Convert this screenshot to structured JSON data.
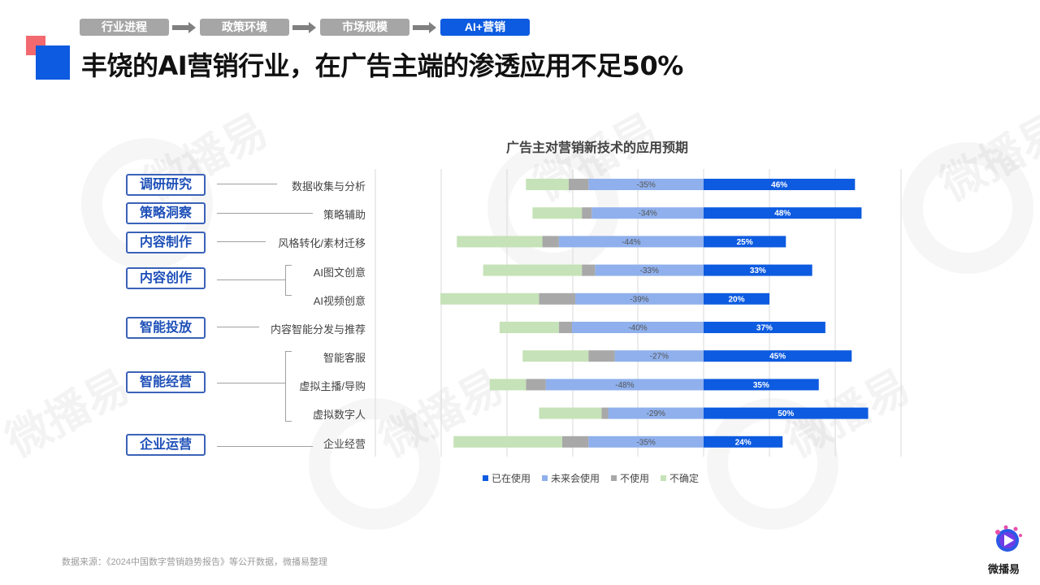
{
  "breadcrumbs": [
    "行业进程",
    "政策环境",
    "市场规模",
    "AI+营销"
  ],
  "title": "丰饶的AI营销行业，在广告主端的渗透应用不足50%",
  "watermark": "微播易",
  "source": "数据来源：《2024中国数字营销趋势报告》等公开数据，微播易整理",
  "logo_text": "微播易",
  "categories": [
    "调研研究",
    "策略洞察",
    "内容制作",
    "内容创作",
    "智能投放",
    "智能经营",
    "企业运营"
  ],
  "colors": {
    "used": "#0d5be0",
    "future": "#8fb0ec",
    "not_use": "#a8a8a8",
    "unsure": "#c6e2b8",
    "accent": "#0d5be0"
  },
  "chart_data": {
    "type": "bar",
    "title": "广告主对营销新技术的应用预期",
    "legend": [
      "已在使用",
      "未来会使用",
      "不使用",
      "不确定"
    ],
    "legend_position": "bottom",
    "categories": [
      "数据收集与分析",
      "策略辅助",
      "风格转化/素材迁移",
      "AI图文创意",
      "AI视频创意",
      "内容智能分发与推荐",
      "智能客服",
      "虚拟主播/导购",
      "虚拟数字人",
      "企业经营"
    ],
    "series": [
      {
        "name": "已在使用",
        "values": [
          46,
          48,
          25,
          33,
          20,
          37,
          45,
          35,
          50,
          24
        ],
        "labels": [
          "46%",
          "48%",
          "25%",
          "33%",
          "20%",
          "37%",
          "45%",
          "35%",
          "50%",
          "24%"
        ]
      },
      {
        "name": "未来会使用",
        "values": [
          -35,
          -34,
          -44,
          -33,
          -39,
          -40,
          -27,
          -48,
          -29,
          -35
        ],
        "labels": [
          "-35%",
          "-34%",
          "-44%",
          "-33%",
          "-39%",
          "-40%",
          "-27%",
          "-48%",
          "-29%",
          "-35%"
        ]
      },
      {
        "name": "不使用",
        "values": [
          -6,
          -3,
          -5,
          -4,
          -11,
          -4,
          -8,
          -6,
          -2,
          -8
        ]
      },
      {
        "name": "不确定",
        "values": [
          -13,
          -15,
          -26,
          -30,
          -30,
          -18,
          -20,
          -11,
          -19,
          -33
        ]
      }
    ],
    "xlim": [
      -80,
      60
    ]
  }
}
